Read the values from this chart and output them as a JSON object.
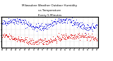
{
  "title": "Milwaukee Weather Outdoor Humidity vs Temperature Every 5 Minutes",
  "title_fontsize": 3.2,
  "background_color": "#ffffff",
  "blue_color": "#0000dd",
  "red_color": "#dd0000",
  "grid_color": "#bbbbbb",
  "num_points": 300,
  "seed": 42,
  "blue_ylim": [
    0,
    100
  ],
  "red_ylim": [
    -30,
    110
  ],
  "yticks_right": [
    20,
    40,
    60,
    80,
    100
  ],
  "dot_size": 0.4,
  "num_xticks": 22
}
